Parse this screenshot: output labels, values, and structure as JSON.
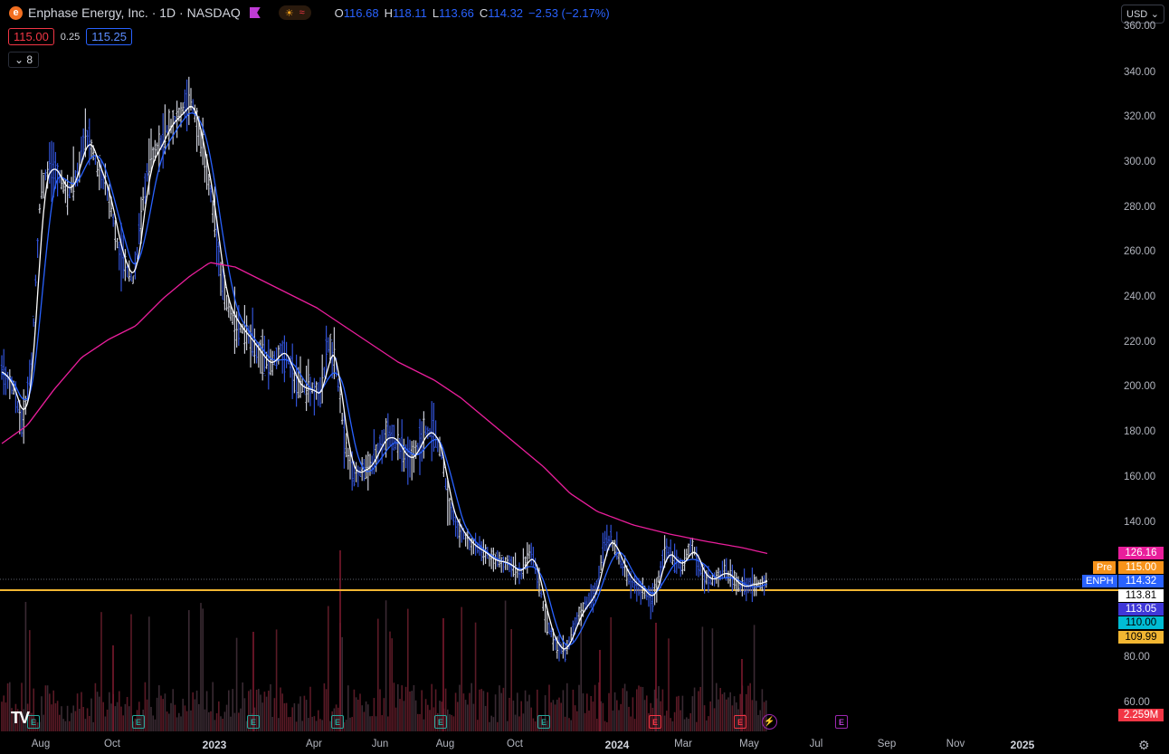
{
  "header": {
    "logo_letter": "e",
    "title": "Enphase Energy, Inc. · 1D · NASDAQ",
    "session_sun": "☀",
    "session_wave": "≈",
    "ohlc": {
      "o_label": "O",
      "o": "116.68",
      "h_label": "H",
      "h": "118.11",
      "l_label": "L",
      "l": "113.66",
      "c_label": "C",
      "c": "114.32",
      "change": "−2.53 (−2.17%)"
    }
  },
  "bidask": {
    "bid": "115.00",
    "spread": "0.25",
    "ask": "115.25"
  },
  "indicator_toggle": {
    "chevron": "⌄",
    "count": "8"
  },
  "currency": {
    "label": "USD",
    "chevron": "⌄"
  },
  "colors": {
    "background": "#000000",
    "ma_long": "#e91e9b",
    "ma_mid": "#2962ff",
    "ma_fast": "#ffffff",
    "hline": "#f2b632",
    "bars": "#c8cbd6",
    "bars_blue": "#3152d6",
    "volume": "#5a1a26"
  },
  "price_tags": [
    {
      "value": "126.16",
      "bg": "#e91e9b",
      "fg": "#ffffff"
    },
    {
      "value": "115.00",
      "bg": "#f7931a",
      "fg": "#ffffff",
      "side": "Pre"
    },
    {
      "value": "114.32",
      "bg": "#2962ff",
      "fg": "#ffffff",
      "side": "ENPH"
    },
    {
      "value": "113.81",
      "bg": "#ffffff",
      "fg": "#000000"
    },
    {
      "value": "113.05",
      "bg": "#3f37d8",
      "fg": "#ffffff"
    },
    {
      "value": "110.00",
      "bg": "#00bcd4",
      "fg": "#000000"
    },
    {
      "value": "109.99",
      "bg": "#f2b632",
      "fg": "#000000"
    },
    {
      "value": "2.259M",
      "bg": "#f23645",
      "fg": "#ffffff"
    }
  ],
  "earnings_markers": [
    {
      "label": "E",
      "color": "green"
    },
    {
      "label": "E",
      "color": "green"
    },
    {
      "label": "E",
      "color": "green"
    },
    {
      "label": "E",
      "color": "green"
    },
    {
      "label": "E",
      "color": "green"
    },
    {
      "label": "E",
      "color": "green"
    },
    {
      "label": "E",
      "color": "red"
    },
    {
      "label": "E",
      "color": "red"
    },
    {
      "label": "E",
      "color": "purple"
    }
  ],
  "tv_logo": "TV",
  "chart_data": {
    "type": "candlestick",
    "symbol": "ENPH",
    "y_ticks": [
      "360.00",
      "340.00",
      "320.00",
      "300.00",
      "280.00",
      "260.00",
      "240.00",
      "220.00",
      "200.00",
      "180.00",
      "160.00",
      "140.00",
      "80.00",
      "60.00"
    ],
    "ylim": [
      60,
      360
    ],
    "x_ticks": [
      "Aug",
      "Oct",
      "2023",
      "Apr",
      "Jun",
      "Aug",
      "Oct",
      "2024",
      "Mar",
      "May",
      "Jul",
      "Sep",
      "Nov",
      "2025"
    ],
    "x_bold": [
      "2023",
      "2024",
      "2025"
    ],
    "price_series": {
      "months": [
        "2022-07",
        "2022-08",
        "2022-09",
        "2022-10",
        "2022-11",
        "2022-12",
        "2023-01",
        "2023-02",
        "2023-03",
        "2023-04",
        "2023-05",
        "2023-06",
        "2023-07",
        "2023-08",
        "2023-09",
        "2023-10",
        "2023-11",
        "2023-12",
        "2024-01",
        "2024-02",
        "2024-03",
        "2024-04",
        "2024-05"
      ],
      "close": [
        200,
        290,
        300,
        250,
        320,
        310,
        240,
        220,
        205,
        220,
        160,
        180,
        175,
        145,
        125,
        85,
        100,
        128,
        110,
        130,
        125,
        115,
        114
      ],
      "ma_long": [
        178,
        200,
        222,
        232,
        250,
        255,
        248,
        236,
        228,
        220,
        205,
        190,
        182,
        165,
        150,
        140,
        135,
        133,
        132,
        131,
        129,
        127,
        126
      ]
    },
    "horizontal_line": 113.81
  }
}
